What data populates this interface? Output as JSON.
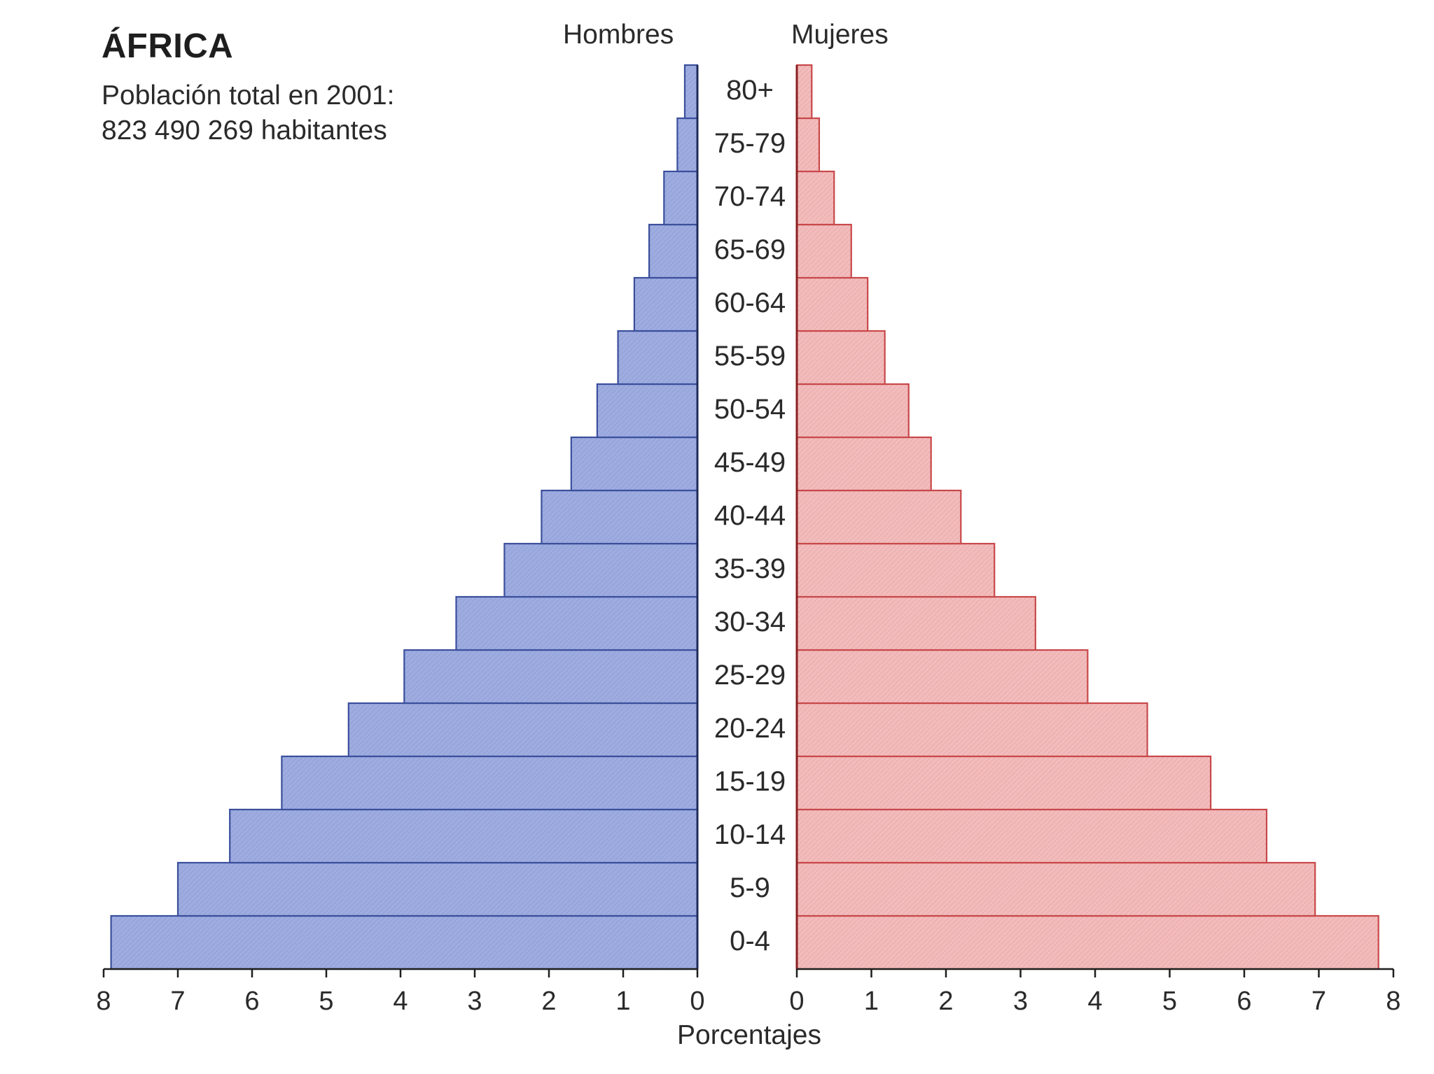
{
  "chart_data": {
    "type": "bar",
    "orientation": "horizontal",
    "layout": "population-pyramid",
    "title": "ÁFRICA",
    "subtitle_lines": [
      "Población total en 2001:",
      "823 490 269 habitantes"
    ],
    "xlabel": "Porcentajes",
    "categories": [
      "0-4",
      "5-9",
      "10-14",
      "15-19",
      "20-24",
      "25-29",
      "30-34",
      "35-39",
      "40-44",
      "45-49",
      "50-54",
      "55-59",
      "60-64",
      "65-69",
      "70-74",
      "75-79",
      "80+"
    ],
    "series": [
      {
        "name": "Hombres",
        "side": "left",
        "color": "#9aa8df",
        "edge_color": "#3b4f9c",
        "values": [
          7.9,
          7.0,
          6.3,
          5.6,
          4.7,
          3.95,
          3.25,
          2.6,
          2.1,
          1.7,
          1.35,
          1.07,
          0.85,
          0.65,
          0.45,
          0.27,
          0.17
        ]
      },
      {
        "name": "Mujeres",
        "side": "right",
        "color": "#f0b8b8",
        "edge_color": "#c8484a",
        "values": [
          7.8,
          6.95,
          6.3,
          5.55,
          4.7,
          3.9,
          3.2,
          2.65,
          2.2,
          1.8,
          1.5,
          1.18,
          0.95,
          0.73,
          0.5,
          0.3,
          0.2
        ]
      }
    ],
    "x_ticks": [
      "0",
      "1",
      "2",
      "3",
      "4",
      "5",
      "6",
      "7",
      "8"
    ],
    "xlim": [
      0,
      8
    ],
    "grid": false,
    "legend": "series names printed above each side"
  }
}
